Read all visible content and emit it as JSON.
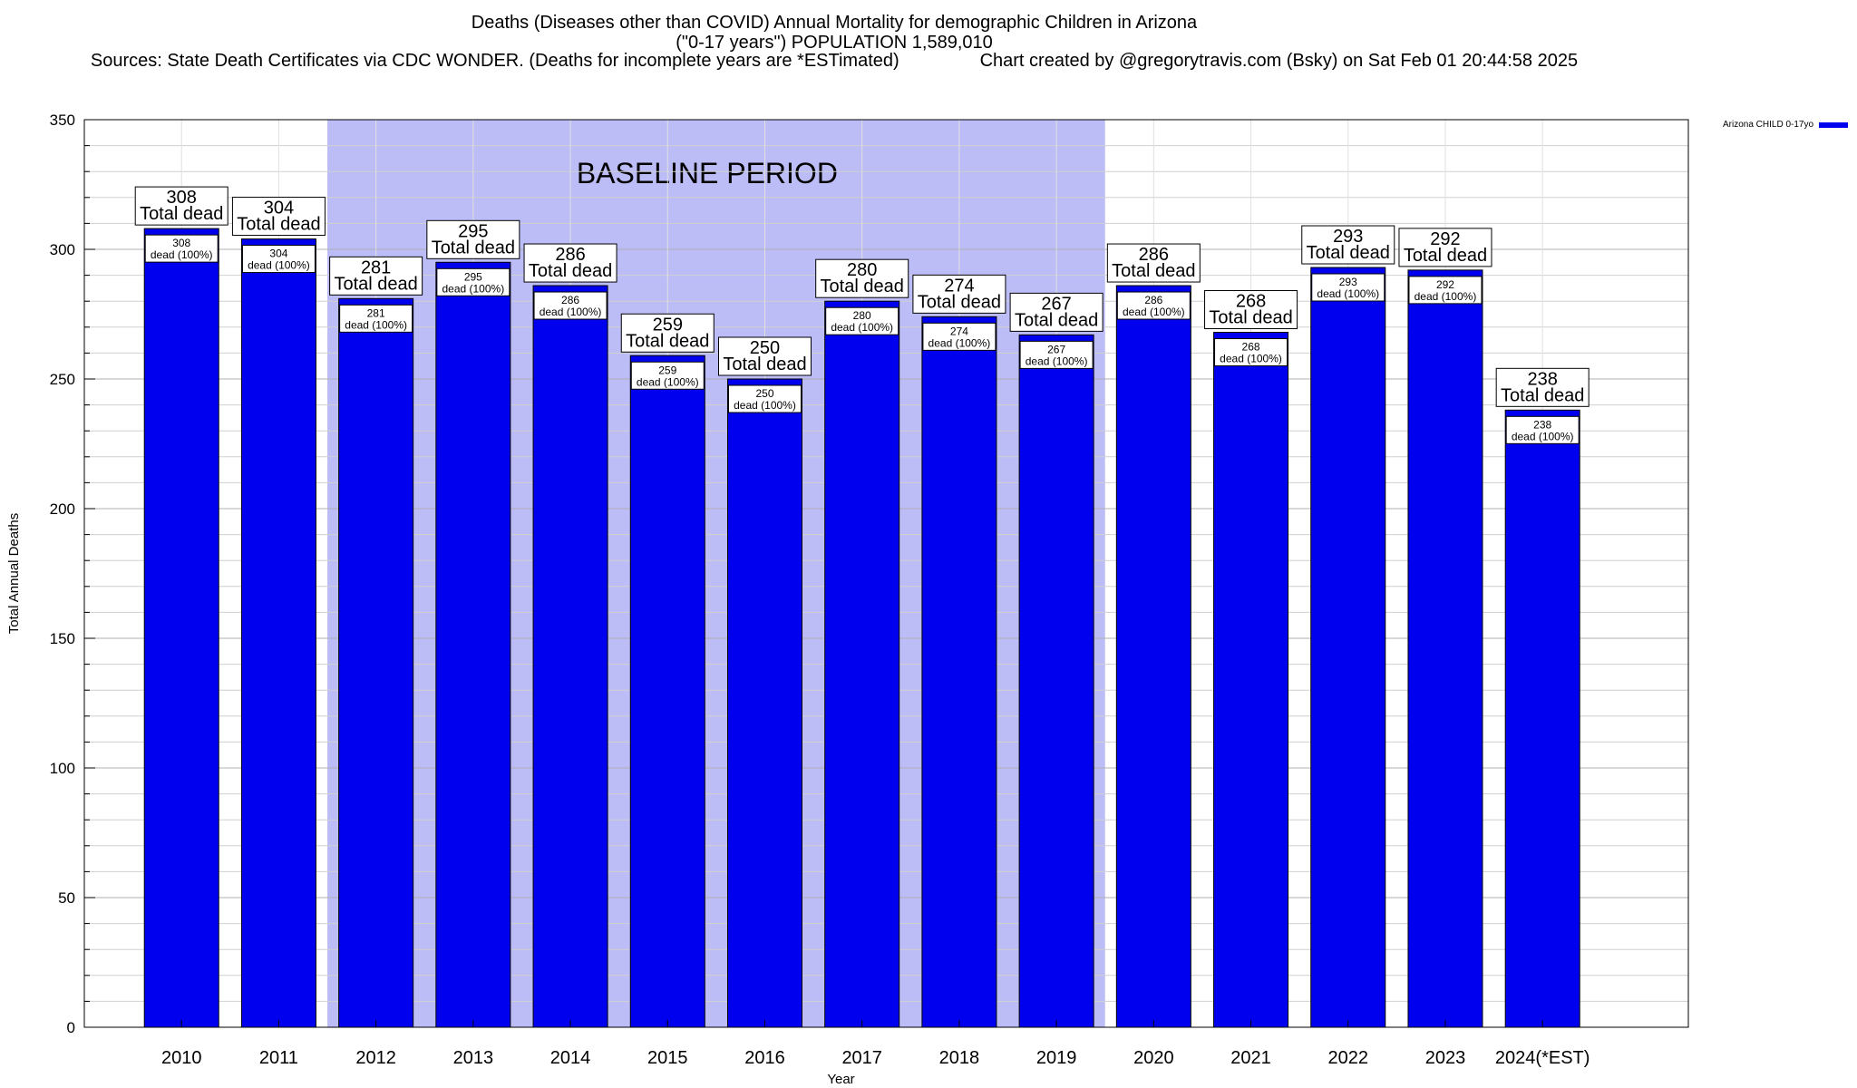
{
  "title_line1": "Deaths (Diseases other than COVID) Annual Mortality for demographic Children in Arizona",
  "title_line2": "(\"0-17 years\") POPULATION 1,589,010",
  "title_line3_left": "Sources: State Death Certificates via CDC WONDER. (Deaths for incomplete years are *ESTimated)",
  "title_line3_right": "Chart created by @gregorytravis.com (Bsky) on Sat Feb 01 20:44:58 2025",
  "legend_label": "Arizona CHILD 0-17yo",
  "baseline_label": "BASELINE PERIOD",
  "colors": {
    "bar": "#0000ee",
    "baseline": "#bcbcf7"
  },
  "chart_data": {
    "type": "bar",
    "xlabel": "Year",
    "ylabel": "Total Annual Deaths",
    "ylim": [
      0,
      350
    ],
    "yticks": [
      0,
      50,
      100,
      150,
      200,
      250,
      300,
      350
    ],
    "grid": true,
    "legend_position": "top-right",
    "categories": [
      "2010",
      "2011",
      "2012",
      "2013",
      "2014",
      "2015",
      "2016",
      "2017",
      "2018",
      "2019",
      "2020",
      "2021",
      "2022",
      "2023",
      "2024(*EST)"
    ],
    "series": [
      {
        "name": "Arizona CHILD 0-17yo",
        "values": [
          308,
          304,
          281,
          295,
          286,
          259,
          250,
          280,
          274,
          267,
          286,
          268,
          293,
          292,
          238
        ]
      }
    ],
    "top_label_suffix": "Total dead",
    "inner_label_suffix": "dead (100%)",
    "baseline_span": [
      "2012",
      "2019"
    ]
  }
}
